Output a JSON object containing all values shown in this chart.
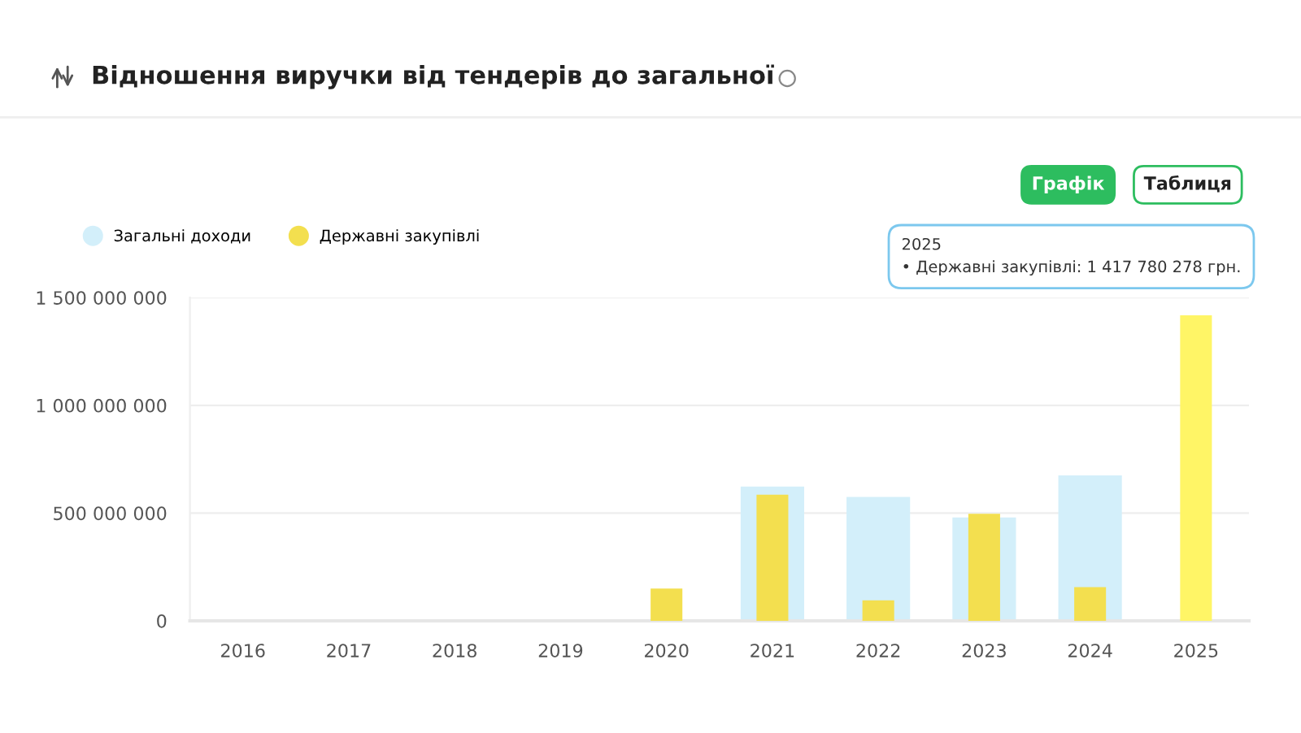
{
  "chart_data": {
    "type": "bar",
    "title": "Відношення виручки від тендерів до загальної",
    "categories": [
      "2016",
      "2017",
      "2018",
      "2019",
      "2020",
      "2021",
      "2022",
      "2023",
      "2024",
      "2025"
    ],
    "series": [
      {
        "name": "Загальні доходи",
        "color": "#d3effa",
        "values": [
          0,
          0,
          0,
          0,
          0,
          623000000,
          575000000,
          480000000,
          675000000,
          0
        ]
      },
      {
        "name": "Державні закупівлі",
        "color": "#f3df4f",
        "colors": [
          "#f3df4f",
          "#f3df4f",
          "#f3df4f",
          "#f3df4f",
          "#f3df4f",
          "#f3df4f",
          "#f3df4f",
          "#f3df4f",
          "#f3df4f",
          "#fff566"
        ],
        "values": [
          0,
          0,
          0,
          0,
          150000000,
          585000000,
          95000000,
          497000000,
          156000000,
          1417780278
        ]
      }
    ],
    "ylim": [
      0,
      1500000000
    ],
    "yticks": [
      {
        "value": 0,
        "label": "0"
      },
      {
        "value": 500000000,
        "label": "500 000 000"
      },
      {
        "value": 1000000000,
        "label": "1 000 000 000"
      },
      {
        "value": 1500000000,
        "label": "1 500 000 000"
      }
    ],
    "grid": "y",
    "legend": "top left",
    "annotations": [
      "Графік",
      "Таблиця",
      {
        "text": "2025\n• Державні закупівлі: 1 417 780 278 грн.",
        "x": "2025",
        "y": 1417780278
      }
    ]
  }
}
